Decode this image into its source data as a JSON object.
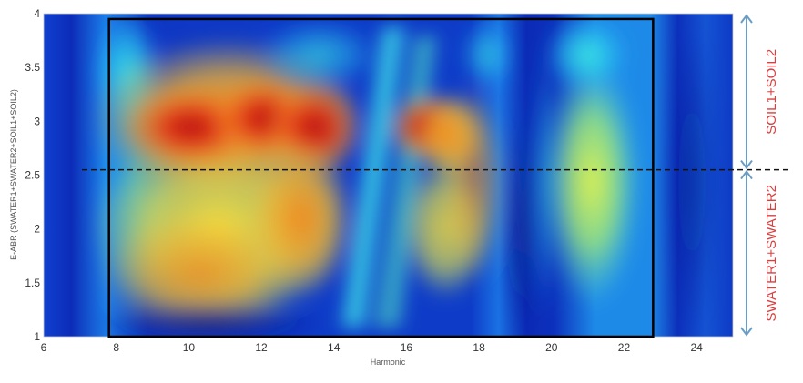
{
  "chart_data": {
    "type": "heatmap",
    "title": "",
    "xlabel": "Harmonic",
    "ylabel": "E-ABR (SWATER1+SWATER2+SOIL1+SOIL2)",
    "xlim": [
      6,
      25
    ],
    "ylim": [
      1,
      4
    ],
    "x_ticks": [
      "6",
      "8",
      "10",
      "12",
      "14",
      "16",
      "18",
      "20",
      "22",
      "24"
    ],
    "y_ticks": [
      "1",
      "1.5",
      "2",
      "2.5",
      "3",
      "3.5",
      "4"
    ],
    "colormap": "jet",
    "threshold_y": 2.55,
    "highlight_box": {
      "x": [
        7.8,
        22.8
      ],
      "y": [
        1,
        3.95
      ]
    },
    "regions": [
      {
        "label": "SOIL1+SOIL2",
        "y_range": [
          2.55,
          4
        ],
        "color": "#d94040"
      },
      {
        "label": "SWATER1+SWATER2",
        "y_range": [
          1,
          2.55
        ],
        "color": "#d94040"
      }
    ],
    "bracket_color": "#6a9cc4",
    "colors": {
      "jet_dark_blue": "#0a1a9e",
      "jet_blue": "#1050e0",
      "jet_cyan": "#38e0f0",
      "jet_yellow": "#f0e040",
      "jet_orange": "#f08020",
      "jet_red": "#b01010"
    }
  }
}
